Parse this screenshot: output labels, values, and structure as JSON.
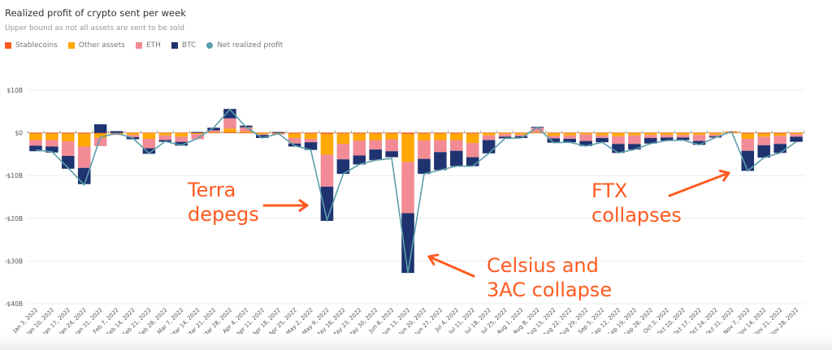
{
  "chart_data": {
    "type": "bar",
    "stacked": true,
    "title": "Realized profit of crypto sent per week",
    "subtitle": "Upper bound as not all assets are sent to be sold",
    "xlabel": "",
    "ylabel": "",
    "ylim": [
      -40,
      10
    ],
    "y_unit": "B USD",
    "y_ticks": [
      10,
      0,
      -10,
      -20,
      -30,
      -40
    ],
    "y_tick_labels": [
      "$10B",
      "$0",
      "-$10B",
      "-$20B",
      "-$30B",
      "-$40B"
    ],
    "grid": true,
    "legend_position": "top-left",
    "categories": [
      "Jan 3, 2022",
      "Jan 10, 2022",
      "Jan 17, 2022",
      "Jan 24, 2022",
      "Jan 31, 2022",
      "Feb 7, 2022",
      "Feb 14, 2022",
      "Feb 21, 2022",
      "Feb 28, 2022",
      "Mar 7, 2022",
      "Mar 14, 2022",
      "Mar 21, 2022",
      "Mar 28, 2022",
      "Apr 4, 2022",
      "Apr 11, 2022",
      "Apr 18, 2022",
      "Apr 25, 2022",
      "May 2, 2022",
      "May 9, 2022",
      "May 16, 2022",
      "May 23, 2022",
      "May 30, 2022",
      "Jun 6, 2022",
      "Jun 13, 2022",
      "Jun 20, 2022",
      "Jun 27, 2022",
      "Jul 4, 2022",
      "Jul 11, 2022",
      "Jul 18, 2022",
      "Jul 25, 2022",
      "Aug 1, 2022",
      "Aug 8, 2022",
      "Aug 15, 2022",
      "Aug 22, 2022",
      "Aug 29, 2022",
      "Sep 5, 2022",
      "Sep 12, 2022",
      "Sep 19, 2022",
      "Sep 26, 2022",
      "Oct 3, 2022",
      "Oct 10, 2022",
      "Oct 17, 2022",
      "Oct 24, 2022",
      "Oct 31, 2022",
      "Nov 7, 2022",
      "Nov 14, 2022",
      "Nov 21, 2022",
      "Nov 28, 2022"
    ],
    "series": [
      {
        "name": "Stablecoins",
        "color": "#FF5A1F",
        "values": [
          -0.2,
          -0.2,
          -0.2,
          -0.2,
          -0.2,
          -0.1,
          -0.1,
          -0.1,
          -0.1,
          -0.1,
          -0.1,
          0.1,
          0.2,
          0.1,
          -0.1,
          -0.1,
          -0.2,
          -0.2,
          -0.3,
          -0.2,
          -0.2,
          -0.2,
          -0.2,
          -0.3,
          -0.2,
          -0.2,
          -0.2,
          -0.2,
          -0.1,
          -0.1,
          -0.1,
          0.1,
          -0.1,
          -0.1,
          -0.1,
          -0.1,
          -0.1,
          -0.1,
          -0.1,
          -0.1,
          -0.1,
          -0.1,
          -0.1,
          0.1,
          -0.2,
          -0.2,
          -0.2,
          -0.1
        ]
      },
      {
        "name": "Other assets",
        "color": "#FFA800",
        "values": [
          -1.5,
          -1.5,
          -1.8,
          -3.0,
          -1.0,
          -0.2,
          -0.4,
          -1.3,
          -0.5,
          -0.8,
          -0.2,
          0.1,
          0.8,
          0.2,
          -0.2,
          -0.1,
          -1.0,
          -1.2,
          -4.8,
          -2.4,
          -1.6,
          -1.5,
          -1.3,
          -6.5,
          -1.6,
          -1.5,
          -1.5,
          -2.2,
          -0.5,
          -0.2,
          -0.3,
          0.1,
          -0.6,
          -0.5,
          -0.3,
          -0.5,
          -0.7,
          -0.5,
          -0.4,
          -0.4,
          -0.4,
          -0.4,
          -0.3,
          0.2,
          -1.2,
          -0.7,
          -0.5,
          -0.2
        ]
      },
      {
        "name": "ETH",
        "color": "#F28B95",
        "values": [
          -1.3,
          -1.5,
          -3.4,
          -5.0,
          -1.9,
          -0.2,
          -0.5,
          -2.2,
          -1.1,
          -1.2,
          -1.2,
          0.4,
          2.4,
          1.0,
          -0.2,
          -0.2,
          -1.3,
          -0.8,
          -7.5,
          -3.6,
          -3.5,
          -2.2,
          -2.8,
          -12.0,
          -4.3,
          -2.8,
          -2.5,
          -3.3,
          -1.1,
          -0.6,
          -0.4,
          1.0,
          -0.6,
          -0.8,
          -1.5,
          -0.6,
          -1.8,
          -2.0,
          -0.7,
          -0.6,
          -0.6,
          -1.4,
          -0.4,
          0.1,
          -2.8,
          -2.0,
          -1.9,
          -0.6
        ]
      },
      {
        "name": "BTC",
        "color": "#1F3370",
        "values": [
          -1.3,
          -1.4,
          -3.0,
          -3.8,
          2.0,
          0.4,
          -0.5,
          -1.3,
          -0.4,
          -0.9,
          0.2,
          0.6,
          2.2,
          0.4,
          -0.7,
          0.2,
          -0.7,
          -1.8,
          -8.0,
          -3.4,
          -2.1,
          -2.5,
          -1.4,
          -14.0,
          -3.5,
          -4.2,
          -3.6,
          -2.1,
          -3.1,
          -0.4,
          -0.4,
          0.2,
          -1.0,
          -0.8,
          -1.2,
          -1.0,
          -2.1,
          -1.3,
          -1.3,
          -0.7,
          -0.6,
          -0.9,
          -0.3,
          0.0,
          -4.7,
          -2.9,
          -2.1,
          -1.2
        ]
      },
      {
        "name": "Net realized profit",
        "color": "#5B9EAB",
        "type": "line",
        "values": [
          -4.0,
          -4.4,
          -8.2,
          -12.2,
          -1.0,
          -0.1,
          -1.2,
          -4.8,
          -2.0,
          -2.9,
          -1.3,
          1.2,
          5.5,
          1.3,
          -1.2,
          -0.2,
          -3.0,
          -4.0,
          -20.4,
          -9.6,
          -7.4,
          -6.4,
          -6.0,
          -32.8,
          -9.6,
          -8.7,
          -7.8,
          -7.8,
          -4.8,
          -1.3,
          -1.2,
          1.3,
          -2.3,
          -2.2,
          -3.1,
          -2.2,
          -4.7,
          -3.9,
          -2.5,
          -1.8,
          -1.7,
          -2.8,
          -1.1,
          0.3,
          -8.9,
          -5.8,
          -4.7,
          -2.1
        ]
      }
    ],
    "annotations": [
      {
        "text_lines": [
          "Terra",
          "depegs"
        ],
        "target": "May 9, 2022"
      },
      {
        "text_lines": [
          "Celsius and",
          "3AC collapse"
        ],
        "target": "Jun 13, 2022"
      },
      {
        "text_lines": [
          "FTX",
          "collapses"
        ],
        "target": "Nov 7, 2022"
      }
    ]
  }
}
